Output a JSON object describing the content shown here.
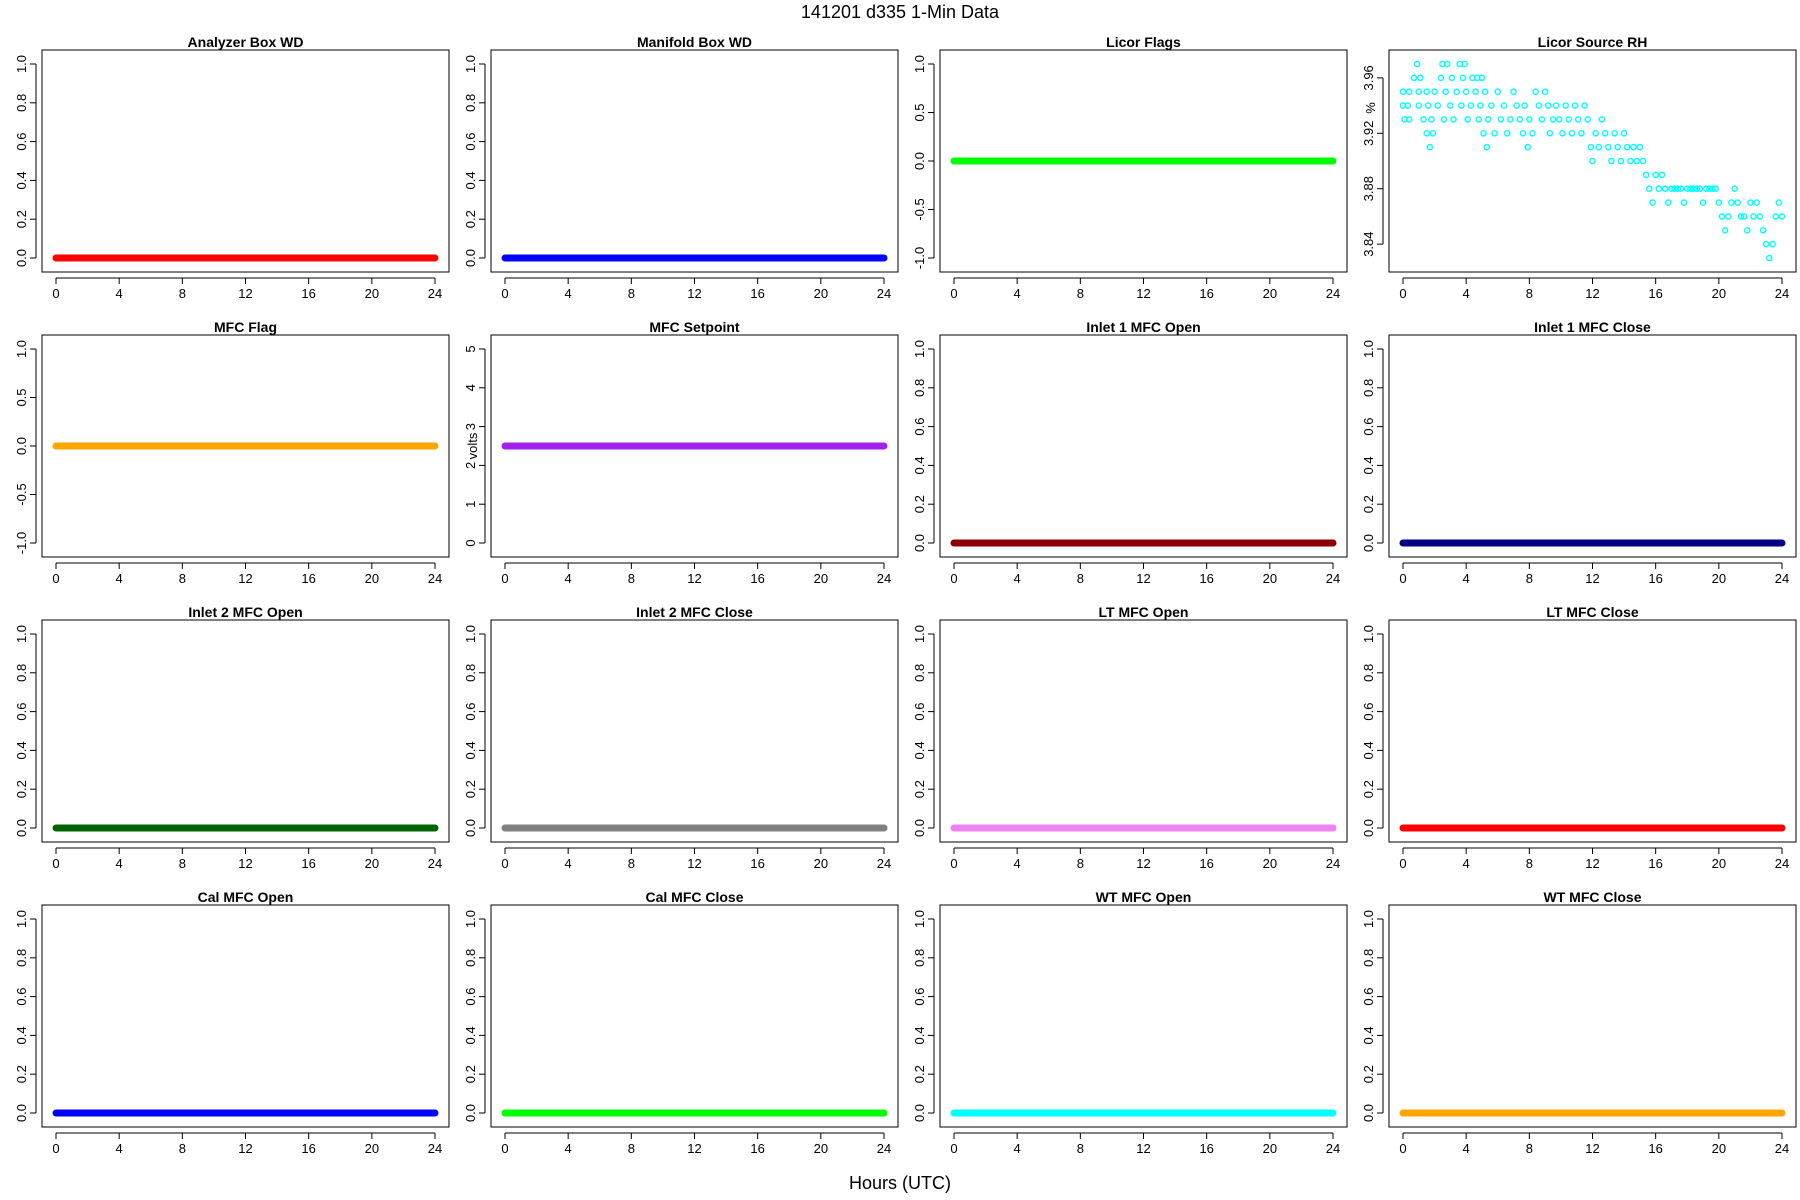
{
  "page": {
    "title": "141201   d335   1-Min Data",
    "xlabel": "Hours (UTC)"
  },
  "chart_data": [
    {
      "id": "analyzer-box-wd",
      "type": "scatter",
      "title": "Analyzer Box WD",
      "ylabel": "",
      "color": "#ff0000",
      "xlim": [
        0,
        24
      ],
      "ylim": [
        0,
        1
      ],
      "x_ticks": [
        "0",
        "4",
        "8",
        "12",
        "16",
        "20",
        "24"
      ],
      "y_ticks": [
        "0.0",
        "0.2",
        "0.4",
        "0.6",
        "0.8",
        "1.0"
      ],
      "series": [
        {
          "segment": {
            "x": [
              0,
              24
            ],
            "y": 0
          }
        }
      ]
    },
    {
      "id": "manifold-box-wd",
      "type": "scatter",
      "title": "Manifold Box WD",
      "ylabel": "",
      "color": "#0000ff",
      "xlim": [
        0,
        24
      ],
      "ylim": [
        0,
        1
      ],
      "x_ticks": [
        "0",
        "4",
        "8",
        "12",
        "16",
        "20",
        "24"
      ],
      "y_ticks": [
        "0.0",
        "0.2",
        "0.4",
        "0.6",
        "0.8",
        "1.0"
      ],
      "series": [
        {
          "segment": {
            "x": [
              0,
              24
            ],
            "y": 0
          }
        }
      ]
    },
    {
      "id": "licor-flags",
      "type": "scatter",
      "title": "Licor Flags",
      "ylabel": "",
      "color": "#00ff00",
      "xlim": [
        0,
        24
      ],
      "ylim": [
        -1,
        1
      ],
      "x_ticks": [
        "0",
        "4",
        "8",
        "12",
        "16",
        "20",
        "24"
      ],
      "y_ticks": [
        "-1.0",
        "-0.5",
        "0.0",
        "0.5",
        "1.0"
      ],
      "series": [
        {
          "segment": {
            "x": [
              0,
              24
            ],
            "y": 0
          }
        }
      ]
    },
    {
      "id": "licor-source-rh",
      "type": "scatter",
      "title": "Licor Source RH",
      "ylabel": "%",
      "color": "#00ffff",
      "xlim": [
        0,
        24
      ],
      "ylim": [
        3.83,
        3.97
      ],
      "x_ticks": [
        "0",
        "4",
        "8",
        "12",
        "16",
        "20",
        "24"
      ],
      "y_ticks": [
        "3.84",
        "3.88",
        "3.92",
        "3.96"
      ],
      "points": [
        [
          0.0,
          3.95
        ],
        [
          0.0,
          3.94
        ],
        [
          0.1,
          3.93
        ],
        [
          0.3,
          3.94
        ],
        [
          0.4,
          3.95
        ],
        [
          0.4,
          3.93
        ],
        [
          0.7,
          3.96
        ],
        [
          0.9,
          3.97
        ],
        [
          1.0,
          3.95
        ],
        [
          1.0,
          3.94
        ],
        [
          1.1,
          3.96
        ],
        [
          1.3,
          3.93
        ],
        [
          1.5,
          3.95
        ],
        [
          1.5,
          3.92
        ],
        [
          1.6,
          3.94
        ],
        [
          1.7,
          3.91
        ],
        [
          1.8,
          3.93
        ],
        [
          1.9,
          3.92
        ],
        [
          2.0,
          3.95
        ],
        [
          2.2,
          3.94
        ],
        [
          2.4,
          3.96
        ],
        [
          2.5,
          3.97
        ],
        [
          2.6,
          3.93
        ],
        [
          2.7,
          3.95
        ],
        [
          2.8,
          3.97
        ],
        [
          3.0,
          3.94
        ],
        [
          3.1,
          3.96
        ],
        [
          3.2,
          3.93
        ],
        [
          3.4,
          3.95
        ],
        [
          3.6,
          3.97
        ],
        [
          3.7,
          3.94
        ],
        [
          3.8,
          3.96
        ],
        [
          3.9,
          3.97
        ],
        [
          4.0,
          3.95
        ],
        [
          4.1,
          3.93
        ],
        [
          4.3,
          3.94
        ],
        [
          4.4,
          3.96
        ],
        [
          4.6,
          3.95
        ],
        [
          4.7,
          3.96
        ],
        [
          4.8,
          3.93
        ],
        [
          4.9,
          3.94
        ],
        [
          5.0,
          3.96
        ],
        [
          5.1,
          3.92
        ],
        [
          5.2,
          3.95
        ],
        [
          5.3,
          3.91
        ],
        [
          5.4,
          3.93
        ],
        [
          5.6,
          3.94
        ],
        [
          5.8,
          3.92
        ],
        [
          6.0,
          3.95
        ],
        [
          6.2,
          3.93
        ],
        [
          6.4,
          3.94
        ],
        [
          6.6,
          3.92
        ],
        [
          6.8,
          3.93
        ],
        [
          7.0,
          3.95
        ],
        [
          7.2,
          3.94
        ],
        [
          7.4,
          3.93
        ],
        [
          7.6,
          3.92
        ],
        [
          7.7,
          3.94
        ],
        [
          7.9,
          3.91
        ],
        [
          8.0,
          3.93
        ],
        [
          8.2,
          3.92
        ],
        [
          8.4,
          3.95
        ],
        [
          8.6,
          3.94
        ],
        [
          8.8,
          3.93
        ],
        [
          9.0,
          3.95
        ],
        [
          9.2,
          3.94
        ],
        [
          9.3,
          3.92
        ],
        [
          9.5,
          3.93
        ],
        [
          9.7,
          3.94
        ],
        [
          9.9,
          3.93
        ],
        [
          10.1,
          3.92
        ],
        [
          10.3,
          3.94
        ],
        [
          10.5,
          3.93
        ],
        [
          10.7,
          3.92
        ],
        [
          10.9,
          3.94
        ],
        [
          11.1,
          3.93
        ],
        [
          11.3,
          3.92
        ],
        [
          11.5,
          3.94
        ],
        [
          11.7,
          3.93
        ],
        [
          11.9,
          3.91
        ],
        [
          12.0,
          3.9
        ],
        [
          12.2,
          3.92
        ],
        [
          12.4,
          3.91
        ],
        [
          12.6,
          3.93
        ],
        [
          12.8,
          3.92
        ],
        [
          13.0,
          3.91
        ],
        [
          13.2,
          3.9
        ],
        [
          13.4,
          3.92
        ],
        [
          13.6,
          3.91
        ],
        [
          13.8,
          3.9
        ],
        [
          14.0,
          3.92
        ],
        [
          14.2,
          3.91
        ],
        [
          14.4,
          3.9
        ],
        [
          14.6,
          3.91
        ],
        [
          14.8,
          3.9
        ],
        [
          15.0,
          3.91
        ],
        [
          15.2,
          3.9
        ],
        [
          15.4,
          3.89
        ],
        [
          15.6,
          3.88
        ],
        [
          15.8,
          3.87
        ],
        [
          16.0,
          3.89
        ],
        [
          16.2,
          3.88
        ],
        [
          16.4,
          3.89
        ],
        [
          16.6,
          3.88
        ],
        [
          16.8,
          3.87
        ],
        [
          17.0,
          3.88
        ],
        [
          17.2,
          3.88
        ],
        [
          17.4,
          3.88
        ],
        [
          17.6,
          3.88
        ],
        [
          17.8,
          3.87
        ],
        [
          18.0,
          3.88
        ],
        [
          18.2,
          3.88
        ],
        [
          18.4,
          3.88
        ],
        [
          18.6,
          3.88
        ],
        [
          18.8,
          3.88
        ],
        [
          19.0,
          3.87
        ],
        [
          19.2,
          3.88
        ],
        [
          19.4,
          3.88
        ],
        [
          19.6,
          3.88
        ],
        [
          19.8,
          3.88
        ],
        [
          20.0,
          3.87
        ],
        [
          20.2,
          3.86
        ],
        [
          20.4,
          3.85
        ],
        [
          20.6,
          3.86
        ],
        [
          20.8,
          3.87
        ],
        [
          21.0,
          3.88
        ],
        [
          21.2,
          3.87
        ],
        [
          21.4,
          3.86
        ],
        [
          21.6,
          3.86
        ],
        [
          21.8,
          3.85
        ],
        [
          22.0,
          3.87
        ],
        [
          22.2,
          3.86
        ],
        [
          22.4,
          3.87
        ],
        [
          22.6,
          3.86
        ],
        [
          22.8,
          3.85
        ],
        [
          23.0,
          3.84
        ],
        [
          23.2,
          3.83
        ],
        [
          23.4,
          3.84
        ],
        [
          23.6,
          3.86
        ],
        [
          23.8,
          3.87
        ],
        [
          24.0,
          3.86
        ]
      ]
    },
    {
      "id": "mfc-flag",
      "type": "scatter",
      "title": "MFC Flag",
      "ylabel": "",
      "color": "#ffa500",
      "xlim": [
        0,
        24
      ],
      "ylim": [
        -1,
        1
      ],
      "x_ticks": [
        "0",
        "4",
        "8",
        "12",
        "16",
        "20",
        "24"
      ],
      "y_ticks": [
        "-1.0",
        "-0.5",
        "0.0",
        "0.5",
        "1.0"
      ],
      "series": [
        {
          "segment": {
            "x": [
              0,
              24
            ],
            "y": 0
          }
        }
      ]
    },
    {
      "id": "mfc-setpoint",
      "type": "scatter",
      "title": "MFC Setpoint",
      "ylabel": "volts",
      "color": "#a020f0",
      "xlim": [
        0,
        24
      ],
      "ylim": [
        0,
        5
      ],
      "x_ticks": [
        "0",
        "4",
        "8",
        "12",
        "16",
        "20",
        "24"
      ],
      "y_ticks": [
        "0",
        "1",
        "2",
        "3",
        "4",
        "5"
      ],
      "series": [
        {
          "segment": {
            "x": [
              0,
              24
            ],
            "y": 2.5
          }
        }
      ]
    },
    {
      "id": "inlet-1-mfc-open",
      "type": "scatter",
      "title": "Inlet 1 MFC Open",
      "ylabel": "",
      "color": "#8b0000",
      "xlim": [
        0,
        24
      ],
      "ylim": [
        0,
        1
      ],
      "x_ticks": [
        "0",
        "4",
        "8",
        "12",
        "16",
        "20",
        "24"
      ],
      "y_ticks": [
        "0.0",
        "0.2",
        "0.4",
        "0.6",
        "0.8",
        "1.0"
      ],
      "series": [
        {
          "segment": {
            "x": [
              0,
              24
            ],
            "y": 0
          }
        }
      ]
    },
    {
      "id": "inlet-1-mfc-close",
      "type": "scatter",
      "title": "Inlet 1 MFC Close",
      "ylabel": "",
      "color": "#000080",
      "xlim": [
        0,
        24
      ],
      "ylim": [
        0,
        1
      ],
      "x_ticks": [
        "0",
        "4",
        "8",
        "12",
        "16",
        "20",
        "24"
      ],
      "y_ticks": [
        "0.0",
        "0.2",
        "0.4",
        "0.6",
        "0.8",
        "1.0"
      ],
      "series": [
        {
          "segment": {
            "x": [
              0,
              24
            ],
            "y": 0
          }
        }
      ]
    },
    {
      "id": "inlet-2-mfc-open",
      "type": "scatter",
      "title": "Inlet 2 MFC Open",
      "ylabel": "",
      "color": "#006400",
      "xlim": [
        0,
        24
      ],
      "ylim": [
        0,
        1
      ],
      "x_ticks": [
        "0",
        "4",
        "8",
        "12",
        "16",
        "20",
        "24"
      ],
      "y_ticks": [
        "0.0",
        "0.2",
        "0.4",
        "0.6",
        "0.8",
        "1.0"
      ],
      "series": [
        {
          "segment": {
            "x": [
              0,
              24
            ],
            "y": 0
          }
        }
      ]
    },
    {
      "id": "inlet-2-mfc-close",
      "type": "scatter",
      "title": "Inlet 2 MFC Close",
      "ylabel": "",
      "color": "#808080",
      "xlim": [
        0,
        24
      ],
      "ylim": [
        0,
        1
      ],
      "x_ticks": [
        "0",
        "4",
        "8",
        "12",
        "16",
        "20",
        "24"
      ],
      "y_ticks": [
        "0.0",
        "0.2",
        "0.4",
        "0.6",
        "0.8",
        "1.0"
      ],
      "series": [
        {
          "segment": {
            "x": [
              0,
              24
            ],
            "y": 0
          }
        }
      ]
    },
    {
      "id": "lt-mfc-open",
      "type": "scatter",
      "title": "LT MFC Open",
      "ylabel": "",
      "color": "#ee82ee",
      "xlim": [
        0,
        24
      ],
      "ylim": [
        0,
        1
      ],
      "x_ticks": [
        "0",
        "4",
        "8",
        "12",
        "16",
        "20",
        "24"
      ],
      "y_ticks": [
        "0.0",
        "0.2",
        "0.4",
        "0.6",
        "0.8",
        "1.0"
      ],
      "series": [
        {
          "segment": {
            "x": [
              0,
              24
            ],
            "y": 0
          }
        }
      ]
    },
    {
      "id": "lt-mfc-close",
      "type": "scatter",
      "title": "LT MFC Close",
      "ylabel": "",
      "color": "#ff0000",
      "xlim": [
        0,
        24
      ],
      "ylim": [
        0,
        1
      ],
      "x_ticks": [
        "0",
        "4",
        "8",
        "12",
        "16",
        "20",
        "24"
      ],
      "y_ticks": [
        "0.0",
        "0.2",
        "0.4",
        "0.6",
        "0.8",
        "1.0"
      ],
      "series": [
        {
          "segment": {
            "x": [
              0,
              24
            ],
            "y": 0
          }
        }
      ]
    },
    {
      "id": "cal-mfc-open",
      "type": "scatter",
      "title": "Cal MFC Open",
      "ylabel": "",
      "color": "#0000ff",
      "xlim": [
        0,
        24
      ],
      "ylim": [
        0,
        1
      ],
      "x_ticks": [
        "0",
        "4",
        "8",
        "12",
        "16",
        "20",
        "24"
      ],
      "y_ticks": [
        "0.0",
        "0.2",
        "0.4",
        "0.6",
        "0.8",
        "1.0"
      ],
      "series": [
        {
          "segment": {
            "x": [
              0,
              24
            ],
            "y": 0
          }
        }
      ]
    },
    {
      "id": "cal-mfc-close",
      "type": "scatter",
      "title": "Cal MFC Close",
      "ylabel": "",
      "color": "#00ff00",
      "xlim": [
        0,
        24
      ],
      "ylim": [
        0,
        1
      ],
      "x_ticks": [
        "0",
        "4",
        "8",
        "12",
        "16",
        "20",
        "24"
      ],
      "y_ticks": [
        "0.0",
        "0.2",
        "0.4",
        "0.6",
        "0.8",
        "1.0"
      ],
      "series": [
        {
          "segment": {
            "x": [
              0,
              24
            ],
            "y": 0
          }
        }
      ]
    },
    {
      "id": "wt-mfc-open",
      "type": "scatter",
      "title": "WT MFC Open",
      "ylabel": "",
      "color": "#00ffff",
      "xlim": [
        0,
        24
      ],
      "ylim": [
        0,
        1
      ],
      "x_ticks": [
        "0",
        "4",
        "8",
        "12",
        "16",
        "20",
        "24"
      ],
      "y_ticks": [
        "0.0",
        "0.2",
        "0.4",
        "0.6",
        "0.8",
        "1.0"
      ],
      "series": [
        {
          "segment": {
            "x": [
              0,
              24
            ],
            "y": 0
          }
        }
      ]
    },
    {
      "id": "wt-mfc-close",
      "type": "scatter",
      "title": "WT MFC Close",
      "ylabel": "",
      "color": "#ffa500",
      "xlim": [
        0,
        24
      ],
      "ylim": [
        0,
        1
      ],
      "x_ticks": [
        "0",
        "4",
        "8",
        "12",
        "16",
        "20",
        "24"
      ],
      "y_ticks": [
        "0.0",
        "0.2",
        "0.4",
        "0.6",
        "0.8",
        "1.0"
      ],
      "series": [
        {
          "segment": {
            "x": [
              0,
              24
            ],
            "y": 0
          }
        }
      ]
    }
  ]
}
